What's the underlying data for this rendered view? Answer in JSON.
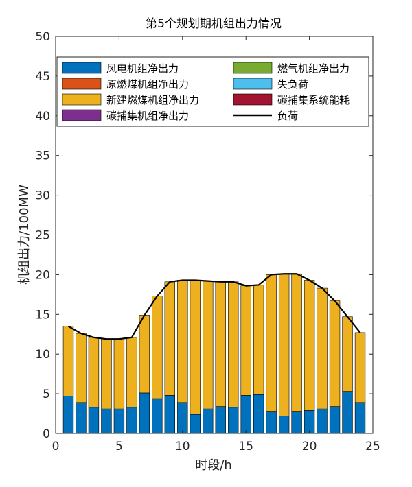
{
  "chart_data": {
    "type": "bar",
    "stacked": true,
    "title": "第5个规划期机组出力情况",
    "xlabel": "时段/h",
    "ylabel": "机组出力/100MW",
    "xlim": [
      0,
      25
    ],
    "ylim": [
      0,
      50
    ],
    "xticks": [
      0,
      5,
      10,
      15,
      20,
      25
    ],
    "yticks": [
      0,
      5,
      10,
      15,
      20,
      25,
      30,
      35,
      40,
      45,
      50
    ],
    "grid": false,
    "legend_position": "top",
    "x": [
      1,
      2,
      3,
      4,
      5,
      6,
      7,
      8,
      9,
      10,
      11,
      12,
      13,
      14,
      15,
      16,
      17,
      18,
      19,
      20,
      21,
      22,
      23,
      24
    ],
    "series": [
      {
        "name": "风电机组净出力",
        "color": "#0072BD",
        "values": [
          4.7,
          3.9,
          3.3,
          3.1,
          3.1,
          3.3,
          5.1,
          4.4,
          4.8,
          3.9,
          2.4,
          3.1,
          3.4,
          3.3,
          4.8,
          4.9,
          2.8,
          2.2,
          2.8,
          2.9,
          3.1,
          3.4,
          5.3,
          3.9
        ]
      },
      {
        "name": "原燃煤机组净出力",
        "color": "#D95319",
        "values": [
          0,
          0,
          0,
          0,
          0,
          0,
          0,
          0,
          0,
          0,
          0,
          0,
          0,
          0,
          0,
          0,
          0,
          0,
          0,
          0,
          0,
          0,
          0,
          0
        ]
      },
      {
        "name": "新建燃煤机组净出力",
        "color": "#EDB120",
        "values": [
          8.8,
          8.7,
          8.8,
          8.8,
          8.8,
          8.8,
          9.8,
          12.9,
          14.3,
          15.4,
          16.9,
          16.1,
          15.7,
          15.8,
          13.8,
          13.8,
          17.2,
          17.9,
          17.3,
          16.4,
          15.2,
          13.3,
          9.4,
          8.8
        ]
      },
      {
        "name": "碳捕集机组净出力",
        "color": "#7E2F8E",
        "values": [
          0,
          0,
          0,
          0,
          0,
          0,
          0,
          0,
          0,
          0,
          0,
          0,
          0,
          0,
          0,
          0,
          0,
          0,
          0,
          0,
          0,
          0,
          0,
          0
        ]
      },
      {
        "name": "燃气机组净出力",
        "color": "#77AC30",
        "values": [
          0,
          0,
          0,
          0,
          0,
          0,
          0,
          0,
          0,
          0,
          0,
          0,
          0,
          0,
          0,
          0,
          0,
          0,
          0,
          0,
          0,
          0,
          0,
          0
        ]
      },
      {
        "name": "失负荷",
        "color": "#4DBEEE",
        "values": [
          0,
          0,
          0,
          0,
          0,
          0,
          0,
          0,
          0,
          0,
          0,
          0,
          0,
          0,
          0,
          0,
          0,
          0,
          0,
          0,
          0,
          0,
          0,
          0
        ]
      },
      {
        "name": "碳捕集系统能耗",
        "color": "#A2142F",
        "values": [
          0,
          0,
          0,
          0,
          0,
          0,
          0,
          0,
          0,
          0,
          0,
          0,
          0,
          0,
          0,
          0,
          0,
          0,
          0,
          0,
          0,
          0,
          0,
          0
        ]
      }
    ],
    "line": {
      "name": "负荷",
      "color": "#000000",
      "values": [
        13.5,
        12.6,
        12.1,
        11.9,
        11.9,
        12.1,
        14.9,
        17.3,
        19.1,
        19.3,
        19.3,
        19.2,
        19.1,
        19.1,
        18.6,
        18.7,
        20.0,
        20.1,
        20.1,
        19.3,
        18.3,
        16.7,
        14.7,
        12.7
      ]
    },
    "legend_order": [
      [
        "风电机组净出力",
        "燃气机组净出力"
      ],
      [
        "原燃煤机组净出力",
        "失负荷"
      ],
      [
        "新建燃煤机组净出力",
        "碳捕集系统能耗"
      ],
      [
        "碳捕集机组净出力",
        "负荷"
      ]
    ]
  }
}
